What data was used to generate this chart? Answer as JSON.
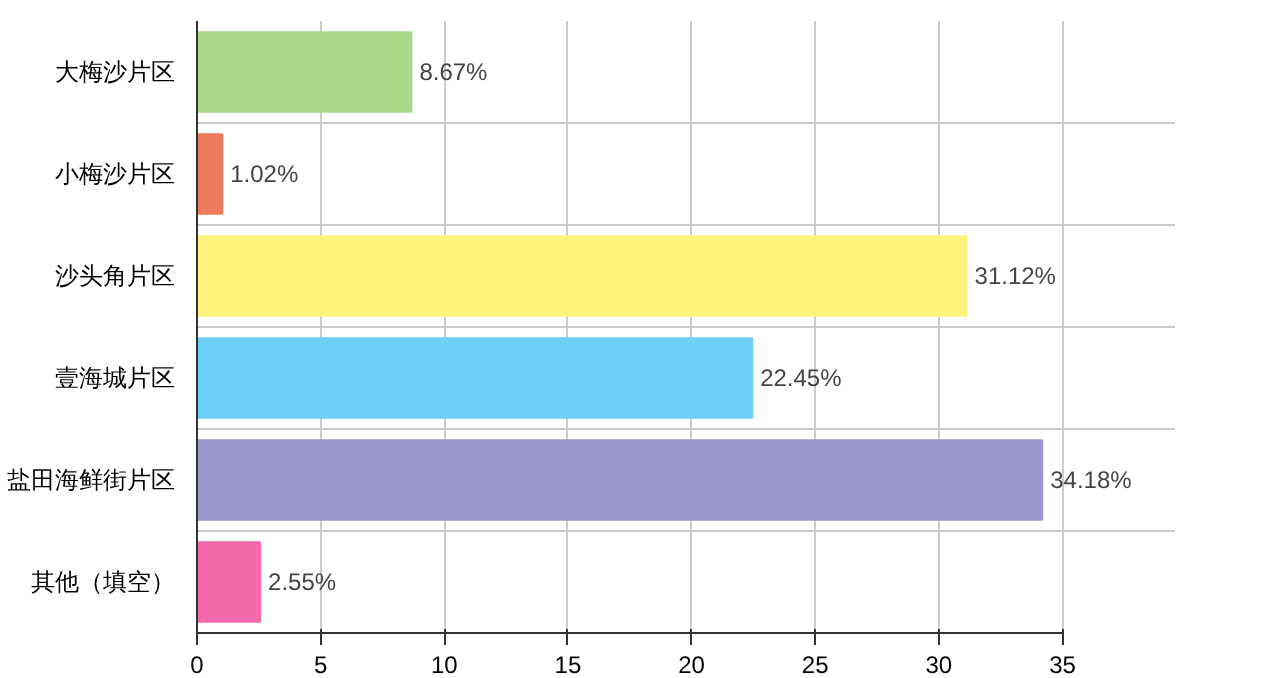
{
  "chart_data": {
    "type": "bar",
    "orientation": "horizontal",
    "categories": [
      "大梅沙片区",
      "小梅沙片区",
      "沙头角片区",
      "壹海城片区",
      "盐田海鲜街片区",
      "其他（填空）"
    ],
    "values": [
      8.67,
      1.02,
      31.12,
      22.45,
      34.18,
      2.55
    ],
    "colors": [
      "#a9d98b",
      "#ef7b5d",
      "#fef47d",
      "#6ccff6",
      "#9a96cb",
      "#f26aaa"
    ],
    "value_labels": [
      "8.67%",
      "1.02%",
      "31.12%",
      "22.45%",
      "34.18%",
      "2.55%"
    ],
    "xlim": [
      0,
      35
    ],
    "xticks": [
      0,
      5,
      10,
      15,
      20,
      25,
      30,
      35
    ],
    "grid": true
  }
}
